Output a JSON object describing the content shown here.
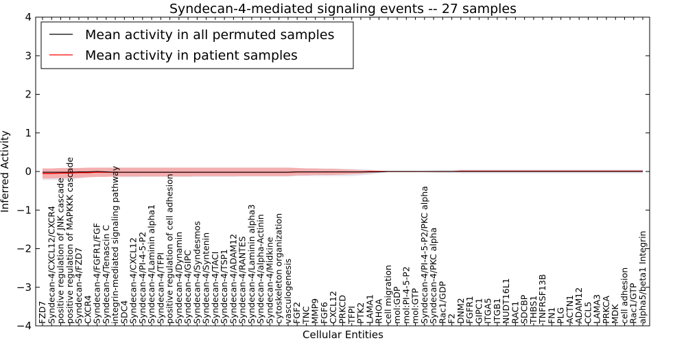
{
  "chart_data": {
    "type": "line",
    "title": "Syndecan-4-mediated signaling events -- 27 samples",
    "xlabel": "Cellular Entities",
    "ylabel": "Inferred Activity",
    "ylim": [
      -4,
      4
    ],
    "yticks": [
      -4,
      -3,
      -2,
      -1,
      0,
      1,
      2,
      3,
      4
    ],
    "grid": false,
    "legend_position": "top-left",
    "categories": [
      "FZD7",
      "Syndecan-4/CXCL12/CXCR4",
      "positive regulation of JNK cascade",
      "positive regulation of MAPKKK cascade",
      "Syndecan-4/FZD7",
      "CXCR4",
      "Syndecan-4/FGFR1/FGF",
      "Syndecan-4/Tenascin C",
      "integrin-mediated signaling pathway",
      "SDC4",
      "Syndecan-4/CXCL12",
      "Syndecan-4/PI-4-5-P2",
      "Syndecan-4/Laminin alpha1",
      "Syndecan-4/TFPI",
      "positive regulation of cell adhesion",
      "Syndecan-4/Dynamin",
      "Syndecan-4/GIPC",
      "Syndecan-4/Syndesmos",
      "Syndecan-4/Syntenin",
      "Syndecan-4/TACI",
      "Syndecan-4/TSP1",
      "Syndecan-4/ADAM12",
      "Syndecan-4/RANTES",
      "Syndecan-4/Laminin alpha3",
      "Syndecan-4/alpha-Actinin",
      "Syndecan-4/Midkine",
      "cytoskeleton organization",
      "vasculogenesis",
      "FGF2",
      "TNC",
      "MMP9",
      "FGF6",
      "CXCL12",
      "PRKCD",
      "TFPI",
      "PTK2",
      "LAMA1",
      "RHOA",
      "cell migration",
      "mol:GDP",
      "mol:PI-4-5-P2",
      "mol:GTP",
      "Syndecan-4/PI-4-5-P2/PKC alpha",
      "Syndecan-4/PKC alpha",
      "Rac1/GDP",
      "F2",
      "DNM2",
      "FGFR1",
      "GIPC1",
      "ITGA5",
      "ITGB1",
      "NUDT16L1",
      "RAC1",
      "SDCBP",
      "THBS1",
      "TNFRSF13B",
      "FN1",
      "PLG",
      "ACTN1",
      "ADAM12",
      "CCL5",
      "LAMA3",
      "PRKCA",
      "MDK",
      "cell adhesion",
      "Rac1/GTP",
      "alpha5/beta1 Integrin"
    ],
    "series": [
      {
        "name": "Mean activity in all permuted samples",
        "color": "#000000",
        "values": [
          -0.02,
          -0.02,
          -0.02,
          -0.02,
          -0.01,
          -0.01,
          0.0,
          -0.01,
          -0.02,
          -0.02,
          -0.02,
          -0.02,
          -0.02,
          -0.02,
          -0.02,
          -0.02,
          -0.02,
          -0.02,
          -0.02,
          -0.02,
          -0.02,
          -0.02,
          -0.02,
          -0.02,
          -0.02,
          -0.02,
          -0.02,
          -0.02,
          -0.01,
          -0.01,
          -0.01,
          -0.01,
          -0.01,
          -0.01,
          -0.01,
          -0.01,
          -0.01,
          -0.01,
          0.0,
          0.0,
          0.0,
          0.0,
          0.0,
          0.0,
          0.0,
          0.0,
          0.0,
          0.0,
          0.0,
          0.0,
          0.0,
          0.0,
          0.0,
          0.0,
          0.0,
          0.0,
          0.0,
          0.0,
          0.0,
          0.0,
          0.0,
          0.0,
          0.0,
          0.0,
          0.0,
          0.0,
          0.0
        ],
        "band_lower": [
          -0.22,
          -0.22,
          -0.22,
          -0.22,
          -0.18,
          -0.15,
          -0.12,
          -0.12,
          -0.14,
          -0.15,
          -0.15,
          -0.14,
          -0.14,
          -0.14,
          -0.14,
          -0.14,
          -0.14,
          -0.14,
          -0.14,
          -0.14,
          -0.14,
          -0.14,
          -0.13,
          -0.13,
          -0.13,
          -0.13,
          -0.13,
          -0.13,
          -0.12,
          -0.12,
          -0.12,
          -0.12,
          -0.12,
          -0.12,
          -0.12,
          -0.1,
          -0.08,
          -0.05,
          -0.02,
          -0.02,
          -0.02,
          -0.02,
          -0.02,
          -0.03,
          -0.04,
          -0.04,
          -0.05,
          -0.05,
          -0.05,
          -0.05,
          -0.05,
          -0.05,
          -0.05,
          -0.05,
          -0.05,
          -0.05,
          -0.05,
          -0.05,
          -0.05,
          -0.05,
          -0.05,
          -0.05,
          -0.05,
          -0.05,
          -0.05,
          -0.05,
          -0.05
        ],
        "band_upper": [
          0.05,
          0.05,
          0.05,
          0.06,
          0.07,
          0.08,
          0.1,
          0.1,
          0.1,
          0.1,
          0.1,
          0.1,
          0.1,
          0.1,
          0.1,
          0.1,
          0.1,
          0.1,
          0.1,
          0.1,
          0.1,
          0.1,
          0.1,
          0.1,
          0.1,
          0.1,
          0.1,
          0.1,
          0.08,
          0.08,
          0.08,
          0.08,
          0.08,
          0.07,
          0.07,
          0.06,
          0.05,
          0.03,
          0.02,
          0.02,
          0.02,
          0.02,
          0.02,
          0.03,
          0.04,
          0.04,
          0.05,
          0.05,
          0.05,
          0.05,
          0.05,
          0.05,
          0.05,
          0.05,
          0.05,
          0.05,
          0.05,
          0.05,
          0.05,
          0.05,
          0.05,
          0.05,
          0.05,
          0.05,
          0.05,
          0.05,
          0.05
        ]
      },
      {
        "name": "Mean activity in patient samples",
        "color": "#ff0000",
        "band_color": "#f4a3a3",
        "values": [
          -0.05,
          -0.05,
          -0.04,
          -0.04,
          -0.03,
          -0.03,
          -0.02,
          -0.02,
          -0.02,
          -0.02,
          -0.02,
          -0.02,
          -0.02,
          -0.02,
          -0.02,
          -0.02,
          -0.02,
          -0.02,
          -0.02,
          -0.02,
          -0.02,
          -0.02,
          -0.02,
          -0.02,
          -0.02,
          -0.02,
          -0.02,
          -0.02,
          -0.01,
          -0.01,
          -0.01,
          -0.01,
          -0.01,
          -0.01,
          -0.01,
          -0.01,
          0.0,
          0.0,
          0.0,
          0.0,
          0.0,
          0.0,
          0.0,
          0.0,
          0.0,
          0.0,
          0.01,
          0.01,
          0.01,
          0.01,
          0.01,
          0.01,
          0.01,
          0.01,
          0.01,
          0.01,
          0.01,
          0.01,
          0.01,
          0.01,
          0.01,
          0.01,
          0.01,
          0.01,
          0.01,
          0.01,
          0.01
        ],
        "band_lower": [
          -0.18,
          -0.18,
          -0.17,
          -0.17,
          -0.16,
          -0.15,
          -0.14,
          -0.14,
          -0.13,
          -0.13,
          -0.13,
          -0.13,
          -0.13,
          -0.13,
          -0.13,
          -0.13,
          -0.13,
          -0.12,
          -0.12,
          -0.12,
          -0.12,
          -0.12,
          -0.12,
          -0.12,
          -0.12,
          -0.12,
          -0.12,
          -0.12,
          -0.1,
          -0.1,
          -0.09,
          -0.09,
          -0.09,
          -0.08,
          -0.07,
          -0.06,
          -0.04,
          -0.02,
          -0.01,
          -0.01,
          -0.01,
          -0.01,
          0.0,
          0.0,
          0.0,
          0.0,
          0.0,
          0.0,
          0.0,
          0.0,
          0.0,
          0.0,
          0.0,
          0.0,
          0.0,
          0.0,
          0.0,
          0.0,
          0.0,
          0.0,
          0.0,
          0.0,
          0.0,
          0.0,
          0.0,
          0.0,
          0.0
        ],
        "band_upper": [
          0.08,
          0.08,
          0.09,
          0.09,
          0.09,
          0.1,
          0.1,
          0.1,
          0.1,
          0.1,
          0.1,
          0.1,
          0.1,
          0.1,
          0.1,
          0.1,
          0.1,
          0.1,
          0.1,
          0.1,
          0.1,
          0.1,
          0.1,
          0.1,
          0.1,
          0.1,
          0.1,
          0.1,
          0.09,
          0.08,
          0.08,
          0.07,
          0.07,
          0.06,
          0.05,
          0.04,
          0.03,
          0.02,
          0.01,
          0.01,
          0.01,
          0.01,
          0.01,
          0.01,
          0.01,
          0.01,
          0.02,
          0.02,
          0.02,
          0.02,
          0.02,
          0.02,
          0.02,
          0.02,
          0.02,
          0.02,
          0.02,
          0.02,
          0.02,
          0.02,
          0.02,
          0.02,
          0.02,
          0.02,
          0.02,
          0.02,
          0.02
        ]
      }
    ]
  }
}
